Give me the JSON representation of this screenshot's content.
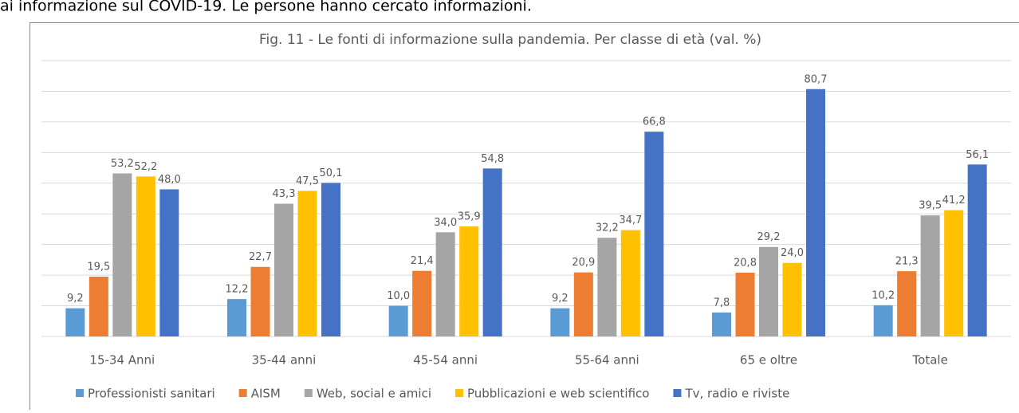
{
  "caption": "ai informazione sul COVID-19. Le persone hanno cercato informazioni.",
  "chart_data": {
    "type": "bar",
    "title": "Fig. 11 - Le  fonti di informazione sulla pandemia. Per classe di età (val. %)",
    "categories": [
      "15-34 Anni",
      "35-44 anni",
      "45-54 anni",
      "55-64 anni",
      "65 e oltre",
      "Totale"
    ],
    "series": [
      {
        "name": "Professionisti sanitari",
        "color": "#5b9bd5",
        "values": [
          9.2,
          12.2,
          10.0,
          9.2,
          7.8,
          10.2
        ],
        "value_labels": [
          "9,2",
          "12,2",
          "10,0",
          "9,2",
          "7,8",
          "10,2"
        ]
      },
      {
        "name": "AISM",
        "color": "#ed7d31",
        "values": [
          19.5,
          22.7,
          21.4,
          20.9,
          20.8,
          21.3
        ],
        "value_labels": [
          "19,5",
          "22,7",
          "21,4",
          "20,9",
          "20,8",
          "21,3"
        ]
      },
      {
        "name": "Web, social e amici",
        "color": "#a5a5a5",
        "values": [
          53.2,
          43.3,
          34.0,
          32.2,
          29.2,
          39.5
        ],
        "value_labels": [
          "53,2",
          "43,3",
          "34,0",
          "32,2",
          "29,2",
          "39,5"
        ]
      },
      {
        "name": "Pubblicazioni e web scientifico",
        "color": "#ffc000",
        "values": [
          52.2,
          47.5,
          35.9,
          34.7,
          24.0,
          41.2
        ],
        "value_labels": [
          "52,2",
          "47,5",
          "35,9",
          "34,7",
          "24,0",
          "41,2"
        ]
      },
      {
        "name": "Tv, radio e riviste",
        "color": "#4472c4",
        "values": [
          48.0,
          50.1,
          54.8,
          66.8,
          80.7,
          56.1
        ],
        "value_labels": [
          "48,0",
          "50,1",
          "54,8",
          "66,8",
          "80,7",
          "56,1"
        ]
      }
    ],
    "ylim": [
      0,
      90
    ],
    "yticks": [
      0,
      10,
      20,
      30,
      40,
      50,
      60,
      70,
      80,
      90
    ],
    "grid": true,
    "ytick_labels": false,
    "legend": "bottom"
  }
}
